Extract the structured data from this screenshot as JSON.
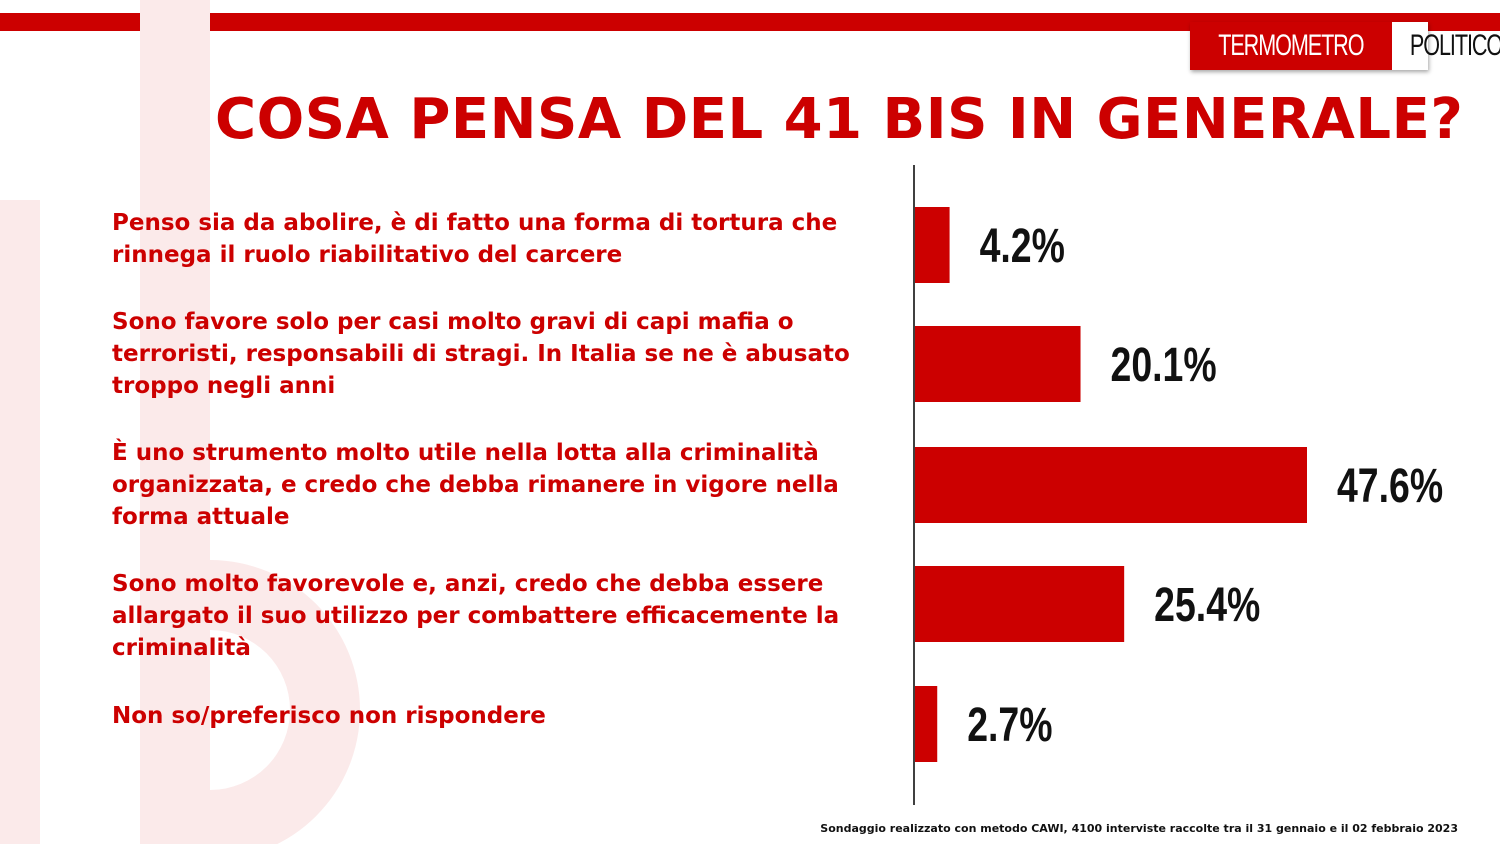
{
  "logo": {
    "part1": "TERMOMETRO",
    "part2": "POLITICO"
  },
  "colors": {
    "accent": "#cc0000",
    "decor": "#fbeaea",
    "label_text": "#111111"
  },
  "chart_data": {
    "type": "bar",
    "orientation": "horizontal",
    "title": "COSA PENSA DEL 41 BIS IN GENERALE?",
    "categories": [
      "Penso sia da abolire, è di fatto una forma di tortura che rinnega il ruolo riabilitativo del carcere",
      "Sono favore solo per casi molto gravi di capi mafia o terroristi, responsabili di stragi. In Italia se ne è abusato troppo negli anni",
      "È uno strumento molto utile nella lotta alla criminalità organizzata, e credo che debba rimanere in vigore nella forma attuale",
      "Sono molto favorevole e, anzi, credo che debba essere allargato il suo utilizzo per combattere efficacemente la criminalità",
      "Non so/preferisco non rispondere"
    ],
    "values": [
      4.2,
      20.1,
      47.6,
      25.4,
      2.7
    ],
    "value_labels": [
      "4.2%",
      "20.1%",
      "47.6%",
      "25.4%",
      "2.7%"
    ],
    "unit": "%",
    "xlim": [
      0,
      50
    ],
    "grid": false,
    "legend": "none"
  },
  "footnote": "Sondaggio realizzato con metodo CAWI, 4100 interviste raccolte tra il 31 gennaio e il 02 febbraio 2023"
}
